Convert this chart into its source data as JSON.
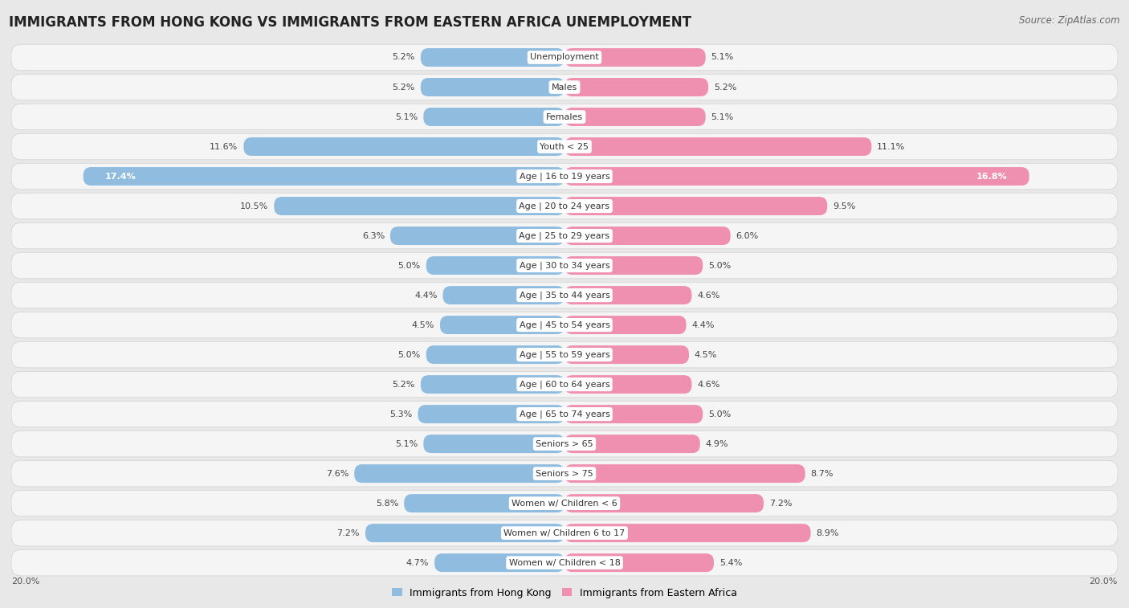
{
  "title": "IMMIGRANTS FROM HONG KONG VS IMMIGRANTS FROM EASTERN AFRICA UNEMPLOYMENT",
  "source": "Source: ZipAtlas.com",
  "categories": [
    "Unemployment",
    "Males",
    "Females",
    "Youth < 25",
    "Age | 16 to 19 years",
    "Age | 20 to 24 years",
    "Age | 25 to 29 years",
    "Age | 30 to 34 years",
    "Age | 35 to 44 years",
    "Age | 45 to 54 years",
    "Age | 55 to 59 years",
    "Age | 60 to 64 years",
    "Age | 65 to 74 years",
    "Seniors > 65",
    "Seniors > 75",
    "Women w/ Children < 6",
    "Women w/ Children 6 to 17",
    "Women w/ Children < 18"
  ],
  "hk_values": [
    5.2,
    5.2,
    5.1,
    11.6,
    17.4,
    10.5,
    6.3,
    5.0,
    4.4,
    4.5,
    5.0,
    5.2,
    5.3,
    5.1,
    7.6,
    5.8,
    7.2,
    4.7
  ],
  "ea_values": [
    5.1,
    5.2,
    5.1,
    11.1,
    16.8,
    9.5,
    6.0,
    5.0,
    4.6,
    4.4,
    4.5,
    4.6,
    5.0,
    4.9,
    8.7,
    7.2,
    8.9,
    5.4
  ],
  "hk_color": "#90bce0",
  "ea_color": "#f090b0",
  "hk_label": "Immigrants from Hong Kong",
  "ea_label": "Immigrants from Eastern Africa",
  "axis_max": 20.0,
  "bg_color": "#e8e8e8",
  "row_bg_color": "#f5f5f5",
  "title_fontsize": 12,
  "source_fontsize": 8.5,
  "label_fontsize": 8,
  "value_fontsize": 8,
  "legend_fontsize": 9,
  "value_in_bar_threshold": 15.0,
  "value_in_bar_color_white": [
    "Age | 16 to 19 years"
  ]
}
